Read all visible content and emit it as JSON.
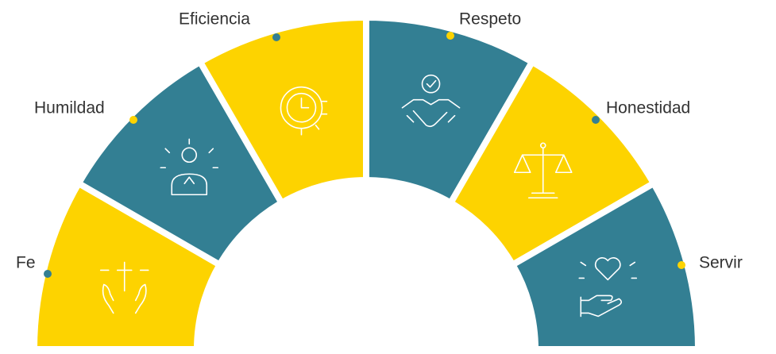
{
  "nodes": [
    {
      "label": "Fe",
      "color": "#fdd300"
    },
    {
      "label": "Humildad",
      "color": "#337f93"
    },
    {
      "label": "Eficiencia",
      "color": "#fdd300"
    },
    {
      "label": "Respeto",
      "color": "#337f93"
    },
    {
      "label": "Honestidad",
      "color": "#fdd300"
    },
    {
      "label": "Servir",
      "color": "#337f93"
    }
  ]
}
